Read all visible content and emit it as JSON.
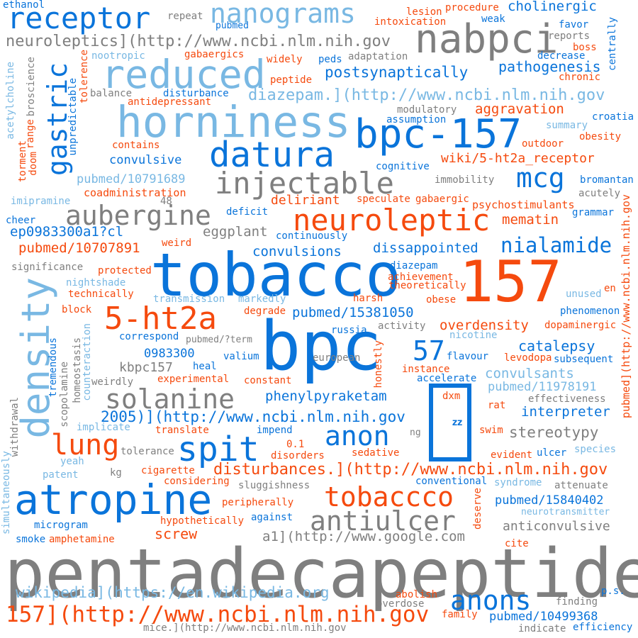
{
  "colors": {
    "blue": "#0a74da",
    "light_blue": "#79b8e3",
    "orange": "#f54a0e",
    "gray": "#7f7f7f"
  },
  "words": [
    {
      "text": "pentadecapeptide"
    },
    {
      "text": "tobacco"
    },
    {
      "text": "bpc"
    },
    {
      "text": "157"
    },
    {
      "text": "horniness"
    },
    {
      "text": "density"
    },
    {
      "text": "atropine"
    },
    {
      "text": "reduced"
    },
    {
      "text": "nabpci"
    },
    {
      "text": "bpc-157"
    },
    {
      "text": "datura"
    },
    {
      "text": "receptor"
    },
    {
      "text": "nanograms"
    },
    {
      "text": "injectable"
    },
    {
      "text": "neuroleptic"
    },
    {
      "text": "gastric"
    },
    {
      "text": "spit"
    },
    {
      "text": "aubergine"
    },
    {
      "text": "solanine"
    },
    {
      "text": "lung"
    },
    {
      "text": "5-ht2a"
    },
    {
      "text": "anon"
    },
    {
      "text": "tobaccco"
    },
    {
      "text": "antiulcer"
    },
    {
      "text": "anons"
    },
    {
      "text": "157](http://www.ncbi.nlm.nih.gov"
    },
    {
      "text": "mcg"
    },
    {
      "text": "nialamide"
    },
    {
      "text": "57"
    },
    {
      "text": "neuroleptics](http://www.ncbi.nlm.nih.gov"
    },
    {
      "text": "diazepam.](http://www.ncbi.nlm.nih.gov"
    },
    {
      "text": "disturbances.](http://www.ncbi.nlm.nih.gov"
    },
    {
      "text": "wikipedia](https://en.wikipedia.org"
    },
    {
      "text": "2005)](http://www.ncbi.nlm.nih.gov"
    },
    {
      "text": "a1](http://www.google.com"
    },
    {
      "text": "mice.](http://www.ncbi.nlm.nih.gov"
    },
    {
      "text": "pubmed](http://www.ncbi.nlm.nih.gov"
    },
    {
      "text": "postsynaptically"
    },
    {
      "text": "pathogenesis"
    },
    {
      "text": "cholinergic"
    },
    {
      "text": "aggravation"
    },
    {
      "text": "wiki/5-ht2a_receptor"
    },
    {
      "text": "deliriant"
    },
    {
      "text": "mematin"
    },
    {
      "text": "eggplant"
    },
    {
      "text": "dissappointed"
    },
    {
      "text": "convulsions"
    },
    {
      "text": "pubmed/10707891"
    },
    {
      "text": "pubmed/15381050"
    },
    {
      "text": "overdensity"
    },
    {
      "text": "catalepsy"
    },
    {
      "text": "convulsants"
    },
    {
      "text": "pubmed/11978191"
    },
    {
      "text": "interpreter"
    },
    {
      "text": "stereotypy"
    },
    {
      "text": "phenylpyraketam"
    },
    {
      "text": "kbpc157"
    },
    {
      "text": "0983300"
    },
    {
      "text": "ep0983300a1?cl"
    },
    {
      "text": "pubmed/15840402"
    },
    {
      "text": "anticonvulsive"
    },
    {
      "text": "screw"
    },
    {
      "text": "pubmed/10499368"
    },
    {
      "text": "pubmed/10791689"
    },
    {
      "text": "convulsive"
    },
    {
      "text": "psychostimulants"
    },
    {
      "text": "coadministration"
    },
    {
      "text": "antidepressant"
    },
    {
      "text": "significance"
    },
    {
      "text": "nightshade"
    },
    {
      "text": "technically"
    },
    {
      "text": "transmission"
    },
    {
      "text": "markedly"
    },
    {
      "text": "degrade"
    },
    {
      "text": "achievement"
    },
    {
      "text": "theoretically"
    },
    {
      "text": "diazepam"
    },
    {
      "text": "harsh"
    },
    {
      "text": "obese"
    },
    {
      "text": "unused"
    },
    {
      "text": "phenomenon"
    },
    {
      "text": "dopaminergic"
    },
    {
      "text": "en"
    },
    {
      "text": "block"
    },
    {
      "text": "protected"
    },
    {
      "text": "correspond"
    },
    {
      "text": "pubmed/?term"
    },
    {
      "text": "valium"
    },
    {
      "text": "heal"
    },
    {
      "text": "experimental"
    },
    {
      "text": "constant"
    },
    {
      "text": "european"
    },
    {
      "text": "activity"
    },
    {
      "text": "russia"
    },
    {
      "text": "nicotine"
    },
    {
      "text": "flavour"
    },
    {
      "text": "levodopa"
    },
    {
      "text": "subsequent"
    },
    {
      "text": "instance"
    },
    {
      "text": "accelerate"
    },
    {
      "text": "weirdly"
    },
    {
      "text": "effectiveness"
    },
    {
      "text": "implicate"
    },
    {
      "text": "translate"
    },
    {
      "text": "impend"
    },
    {
      "text": "ng"
    },
    {
      "text": "swim"
    },
    {
      "text": "rat"
    },
    {
      "text": "dxm"
    },
    {
      "text": "tolerance"
    },
    {
      "text": "0.1"
    },
    {
      "text": "disorders"
    },
    {
      "text": "sedative"
    },
    {
      "text": "evident"
    },
    {
      "text": "ulcer"
    },
    {
      "text": "species"
    },
    {
      "text": "yeah"
    },
    {
      "text": "kg"
    },
    {
      "text": "cigarette"
    },
    {
      "text": "considering"
    },
    {
      "text": "sluggishness"
    },
    {
      "text": "conventional"
    },
    {
      "text": "syndrome"
    },
    {
      "text": "attenuate"
    },
    {
      "text": "patent"
    },
    {
      "text": "peripherally"
    },
    {
      "text": "hypothetically"
    },
    {
      "text": "against"
    },
    {
      "text": "deserve"
    },
    {
      "text": "neurotransmitter"
    },
    {
      "text": "microgram"
    },
    {
      "text": "smoke"
    },
    {
      "text": "amphetamine"
    },
    {
      "text": "cite"
    },
    {
      "text": "abolish"
    },
    {
      "text": "overdose"
    },
    {
      "text": "family"
    },
    {
      "text": "finding"
    },
    {
      "text": "p.s."
    },
    {
      "text": "indicate"
    },
    {
      "text": "efficiency"
    },
    {
      "text": "ethanol"
    },
    {
      "text": "repeat"
    },
    {
      "text": "pubmed"
    },
    {
      "text": "lesion"
    },
    {
      "text": "intoxication"
    },
    {
      "text": "procedure"
    },
    {
      "text": "weak"
    },
    {
      "text": "favor"
    },
    {
      "text": "reports"
    },
    {
      "text": "boss"
    },
    {
      "text": "decrease"
    },
    {
      "text": "centrally"
    },
    {
      "text": "chronic"
    },
    {
      "text": "nootropic"
    },
    {
      "text": "gabaergics"
    },
    {
      "text": "widely"
    },
    {
      "text": "peds"
    },
    {
      "text": "adaptation"
    },
    {
      "text": "peptide"
    },
    {
      "text": "balance"
    },
    {
      "text": "disturbance"
    },
    {
      "text": "modulatory"
    },
    {
      "text": "assumption"
    },
    {
      "text": "croatia"
    },
    {
      "text": "summary"
    },
    {
      "text": "outdoor"
    },
    {
      "text": "obesity"
    },
    {
      "text": "contains"
    },
    {
      "text": "cognitive"
    },
    {
      "text": "immobility"
    },
    {
      "text": "bromantan"
    },
    {
      "text": "acutely"
    },
    {
      "text": "speculate"
    },
    {
      "text": "gabaergic"
    },
    {
      "text": "grammar"
    },
    {
      "text": "48"
    },
    {
      "text": "imipramine"
    },
    {
      "text": "cheer"
    },
    {
      "text": "deficit"
    },
    {
      "text": "continuously"
    },
    {
      "text": "weird"
    },
    {
      "text": "doom"
    },
    {
      "text": "torment"
    },
    {
      "text": "range"
    },
    {
      "text": "acetylcholine"
    },
    {
      "text": "broscience"
    },
    {
      "text": "unpredictable"
    },
    {
      "text": "tolerence"
    },
    {
      "text": "tremendous"
    },
    {
      "text": "homeostasis"
    },
    {
      "text": "counteraction"
    },
    {
      "text": "honestly"
    },
    {
      "text": "scopolamine"
    },
    {
      "text": "withdrawal"
    },
    {
      "text": "simultaneously"
    },
    {
      "text": "𝐳𝐳"
    }
  ]
}
